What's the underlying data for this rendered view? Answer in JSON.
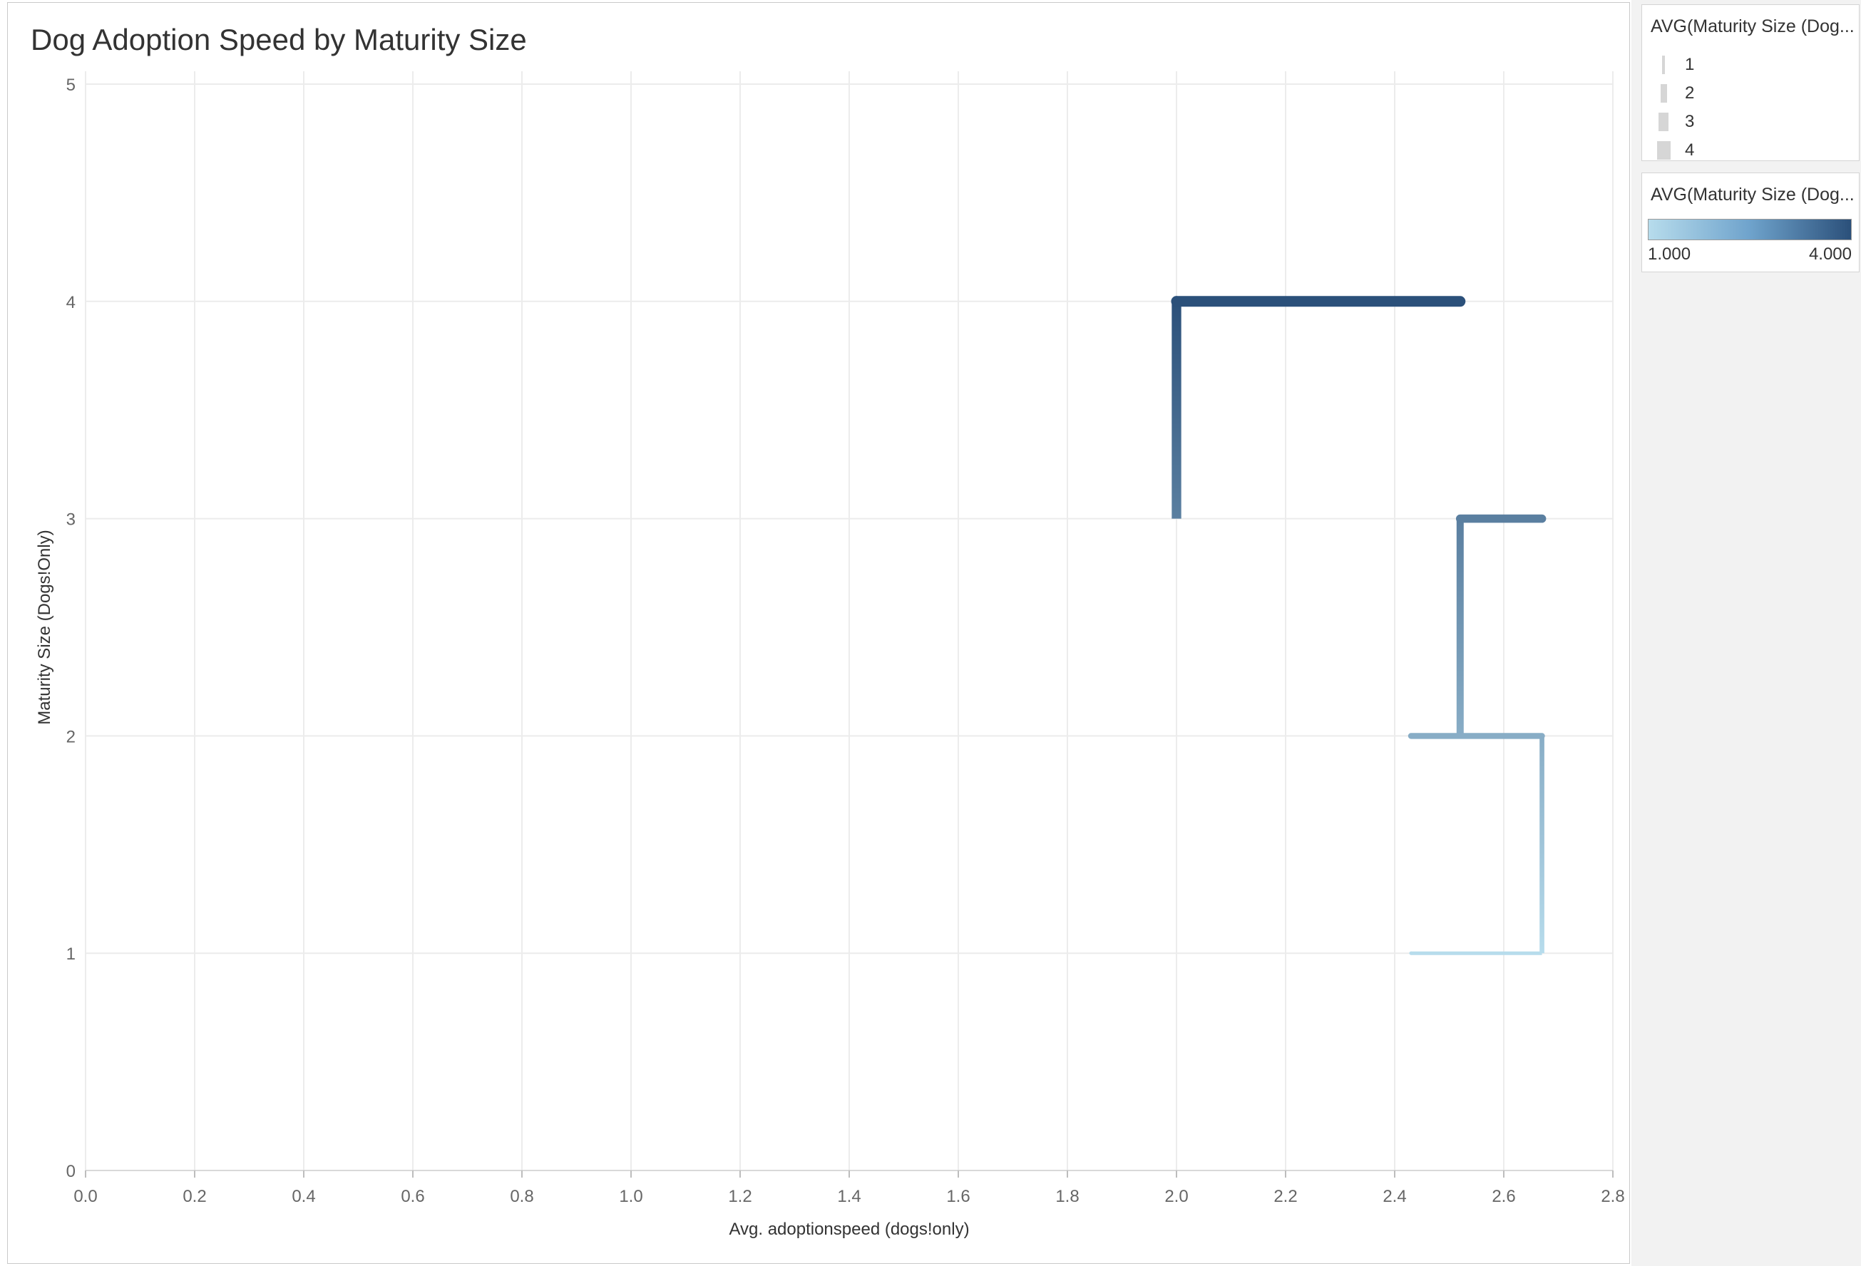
{
  "page": {
    "title": "Dog Adoption Speed by Maturity Size"
  },
  "chart_data": {
    "type": "line",
    "line_shape": "step",
    "title": "Dog Adoption Speed by Maturity Size",
    "xlabel": "Avg. adoptionspeed (dogs!only)",
    "ylabel": "Maturity Size (Dogs!Only)",
    "xlim": [
      0.0,
      2.8
    ],
    "ylim": [
      0,
      5
    ],
    "xticks": [
      "0.0",
      "0.2",
      "0.4",
      "0.6",
      "0.8",
      "1.0",
      "1.2",
      "1.4",
      "1.6",
      "1.8",
      "2.0",
      "2.2",
      "2.4",
      "2.6",
      "2.8"
    ],
    "xtick_values": [
      0.0,
      0.2,
      0.4,
      0.6,
      0.8,
      1.0,
      1.2,
      1.4,
      1.6,
      1.8,
      2.0,
      2.2,
      2.4,
      2.6,
      2.8
    ],
    "yticks": [
      "0",
      "1",
      "2",
      "3",
      "4",
      "5"
    ],
    "ytick_values": [
      0,
      1,
      2,
      3,
      4,
      5
    ],
    "grid": true,
    "series": [
      {
        "points": [
          {
            "x": 2.43,
            "y": 1
          },
          {
            "x": 2.67,
            "y": 2
          },
          {
            "x": 2.52,
            "y": 3
          },
          {
            "x": 2.0,
            "y": 4
          }
        ]
      }
    ],
    "color_scale": {
      "min": 1.0,
      "max": 4.0,
      "low_color": "#b7dcec",
      "high_color": "#2b507a"
    },
    "size_scale": {
      "min": 1,
      "max": 4
    }
  },
  "legends": {
    "size": {
      "title": "AVG(Maturity Size (Dog...",
      "items": [
        {
          "label": "1",
          "value": 1
        },
        {
          "label": "2",
          "value": 2
        },
        {
          "label": "3",
          "value": 3
        },
        {
          "label": "4",
          "value": 4
        }
      ]
    },
    "color": {
      "title": "AVG(Maturity Size (Dog...",
      "min_label": "1.000",
      "max_label": "4.000"
    }
  }
}
